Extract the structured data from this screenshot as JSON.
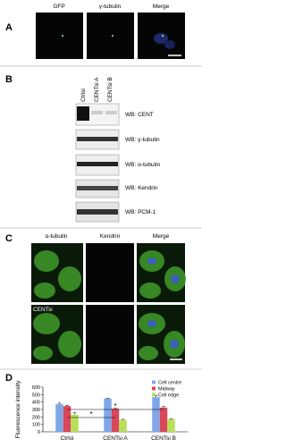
{
  "panels": {
    "a": {
      "label": "A",
      "headers": [
        "GFP",
        "γ-tubulin",
        "Merge"
      ]
    },
    "b": {
      "label": "B",
      "lanes": [
        "Ctrlsi",
        "CENTsi A",
        "CENTsi B"
      ],
      "blots": [
        "WB: CENT",
        "WB: γ-tubulin",
        "WB: α-tubulin",
        "WB: Kendrin",
        "WB: PCM-1"
      ]
    },
    "c": {
      "label": "C",
      "headers": [
        "α-tubulin",
        "Kendrin",
        "Merge"
      ],
      "row_label": "CENTsi"
    },
    "d": {
      "label": "D"
    }
  },
  "chart_data": {
    "type": "bar",
    "y_label": "Fluorescence intensity",
    "categories": [
      "Ctrlsi",
      "CENTsi A",
      "CENTsi B"
    ],
    "series": [
      {
        "name": "Cell centre",
        "color": "#7fa7e8",
        "values": [
          370,
          445,
          465
        ],
        "errors": [
          15,
          8,
          25
        ]
      },
      {
        "name": "Midway",
        "color": "#d9475a",
        "values": [
          345,
          310,
          325
        ],
        "errors": [
          12,
          5,
          15
        ]
      },
      {
        "name": "Cell edge",
        "color": "#b8e05a",
        "values": [
          230,
          160,
          170
        ],
        "errors": [
          25,
          8,
          5
        ]
      }
    ],
    "ylim": [
      0,
      600
    ],
    "yticks": [
      0,
      100,
      200,
      300,
      400,
      500,
      600
    ],
    "annotations": [
      "*",
      "*"
    ]
  }
}
